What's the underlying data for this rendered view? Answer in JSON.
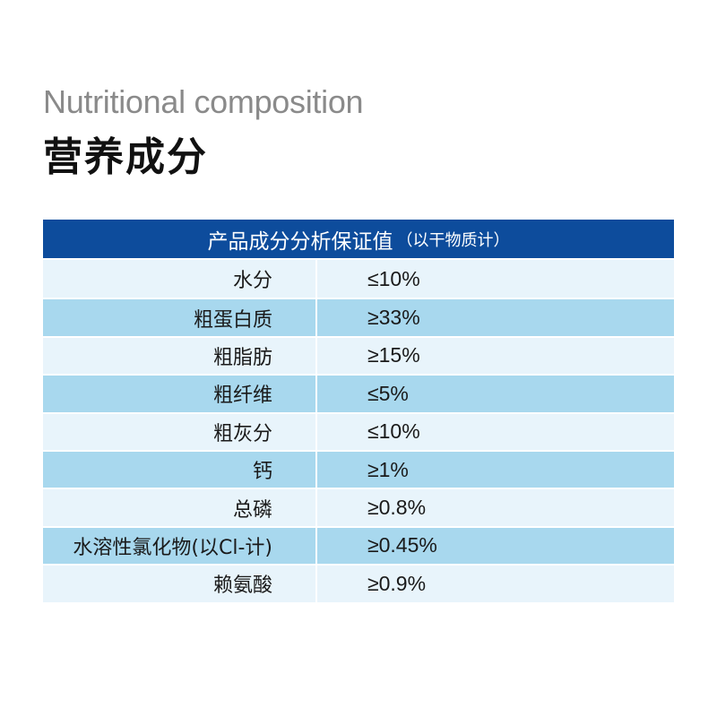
{
  "heading": {
    "english": "Nutritional composition",
    "chinese": "营养成分"
  },
  "table": {
    "header_title": "产品成分分析保证值",
    "header_note": "（以干物质计）",
    "rows": [
      {
        "name": "水分",
        "value": "≤10%"
      },
      {
        "name": "粗蛋白质",
        "value": "≥33%"
      },
      {
        "name": "粗脂肪",
        "value": "≥15%"
      },
      {
        "name": "粗纤维",
        "value": "≤5%"
      },
      {
        "name": "粗灰分",
        "value": "≤10%"
      },
      {
        "name": "钙",
        "value": "≥1%"
      },
      {
        "name": "总磷",
        "value": "≥0.8%"
      },
      {
        "name": "水溶性氯化物(以Cl-计)",
        "value": "≥0.45%"
      },
      {
        "name": "赖氨酸",
        "value": "≥0.9%"
      }
    ]
  },
  "colors": {
    "header_bg": "#0d4c9c",
    "row_light": "#e8f4fb",
    "row_dark": "#a8d8ee"
  }
}
